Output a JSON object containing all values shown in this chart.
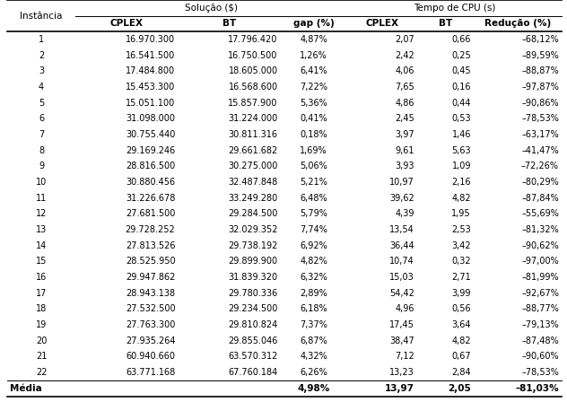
{
  "col_header_row2": [
    "CPLEX",
    "BT",
    "gap (%)",
    "CPLEX",
    "BT",
    "Redução (%)"
  ],
  "rows": [
    [
      "1",
      "16.970.300",
      "17.796.420",
      "4,87%",
      "2,07",
      "0,66",
      "–68,12%"
    ],
    [
      "2",
      "16.541.500",
      "16.750.500",
      "1,26%",
      "2,42",
      "0,25",
      "–89,59%"
    ],
    [
      "3",
      "17.484.800",
      "18.605.000",
      "6,41%",
      "4,06",
      "0,45",
      "–88,87%"
    ],
    [
      "4",
      "15.453.300",
      "16.568.600",
      "7,22%",
      "7,65",
      "0,16",
      "–97,87%"
    ],
    [
      "5",
      "15.051.100",
      "15.857.900",
      "5,36%",
      "4,86",
      "0,44",
      "–90,86%"
    ],
    [
      "6",
      "31.098.000",
      "31.224.000",
      "0,41%",
      "2,45",
      "0,53",
      "–78,53%"
    ],
    [
      "7",
      "30.755.440",
      "30.811.316",
      "0,18%",
      "3,97",
      "1,46",
      "–63,17%"
    ],
    [
      "8",
      "29.169.246",
      "29.661.682",
      "1,69%",
      "9,61",
      "5,63",
      "–41,47%"
    ],
    [
      "9",
      "28.816.500",
      "30.275.000",
      "5,06%",
      "3,93",
      "1,09",
      "–72,26%"
    ],
    [
      "10",
      "30.880.456",
      "32.487.848",
      "5,21%",
      "10,97",
      "2,16",
      "–80,29%"
    ],
    [
      "11",
      "31.226.678",
      "33.249.280",
      "6,48%",
      "39,62",
      "4,82",
      "–87,84%"
    ],
    [
      "12",
      "27.681.500",
      "29.284.500",
      "5,79%",
      "4,39",
      "1,95",
      "–55,69%"
    ],
    [
      "13",
      "29.728.252",
      "32.029.352",
      "7,74%",
      "13,54",
      "2,53",
      "–81,32%"
    ],
    [
      "14",
      "27.813.526",
      "29.738.192",
      "6,92%",
      "36,44",
      "3,42",
      "–90,62%"
    ],
    [
      "15",
      "28.525.950",
      "29.899.900",
      "4,82%",
      "10,74",
      "0,32",
      "–97,00%"
    ],
    [
      "16",
      "29.947.862",
      "31.839.320",
      "6,32%",
      "15,03",
      "2,71",
      "–81,99%"
    ],
    [
      "17",
      "28.943.138",
      "29.780.336",
      "2,89%",
      "54,42",
      "3,99",
      "–92,67%"
    ],
    [
      "18",
      "27.532.500",
      "29.234.500",
      "6,18%",
      "4,96",
      "0,56",
      "–88,77%"
    ],
    [
      "19",
      "27.763.300",
      "29.810.824",
      "7,37%",
      "17,45",
      "3,64",
      "–79,13%"
    ],
    [
      "20",
      "27.935.264",
      "29.855.046",
      "6,87%",
      "38,47",
      "4,82",
      "–87,48%"
    ],
    [
      "21",
      "60.940.660",
      "63.570.312",
      "4,32%",
      "7,12",
      "0,67",
      "–90,60%"
    ],
    [
      "22",
      "63.771.168",
      "67.760.184",
      "6,26%",
      "13,23",
      "2,84",
      "–78,53%"
    ]
  ],
  "footer": [
    "Média",
    "",
    "",
    "4,98%",
    "13,97",
    "2,05",
    "–81,03%"
  ],
  "bg_color": "#ffffff",
  "text_color": "#000000",
  "fontsize": 7.0,
  "header_fontsize": 7.5
}
